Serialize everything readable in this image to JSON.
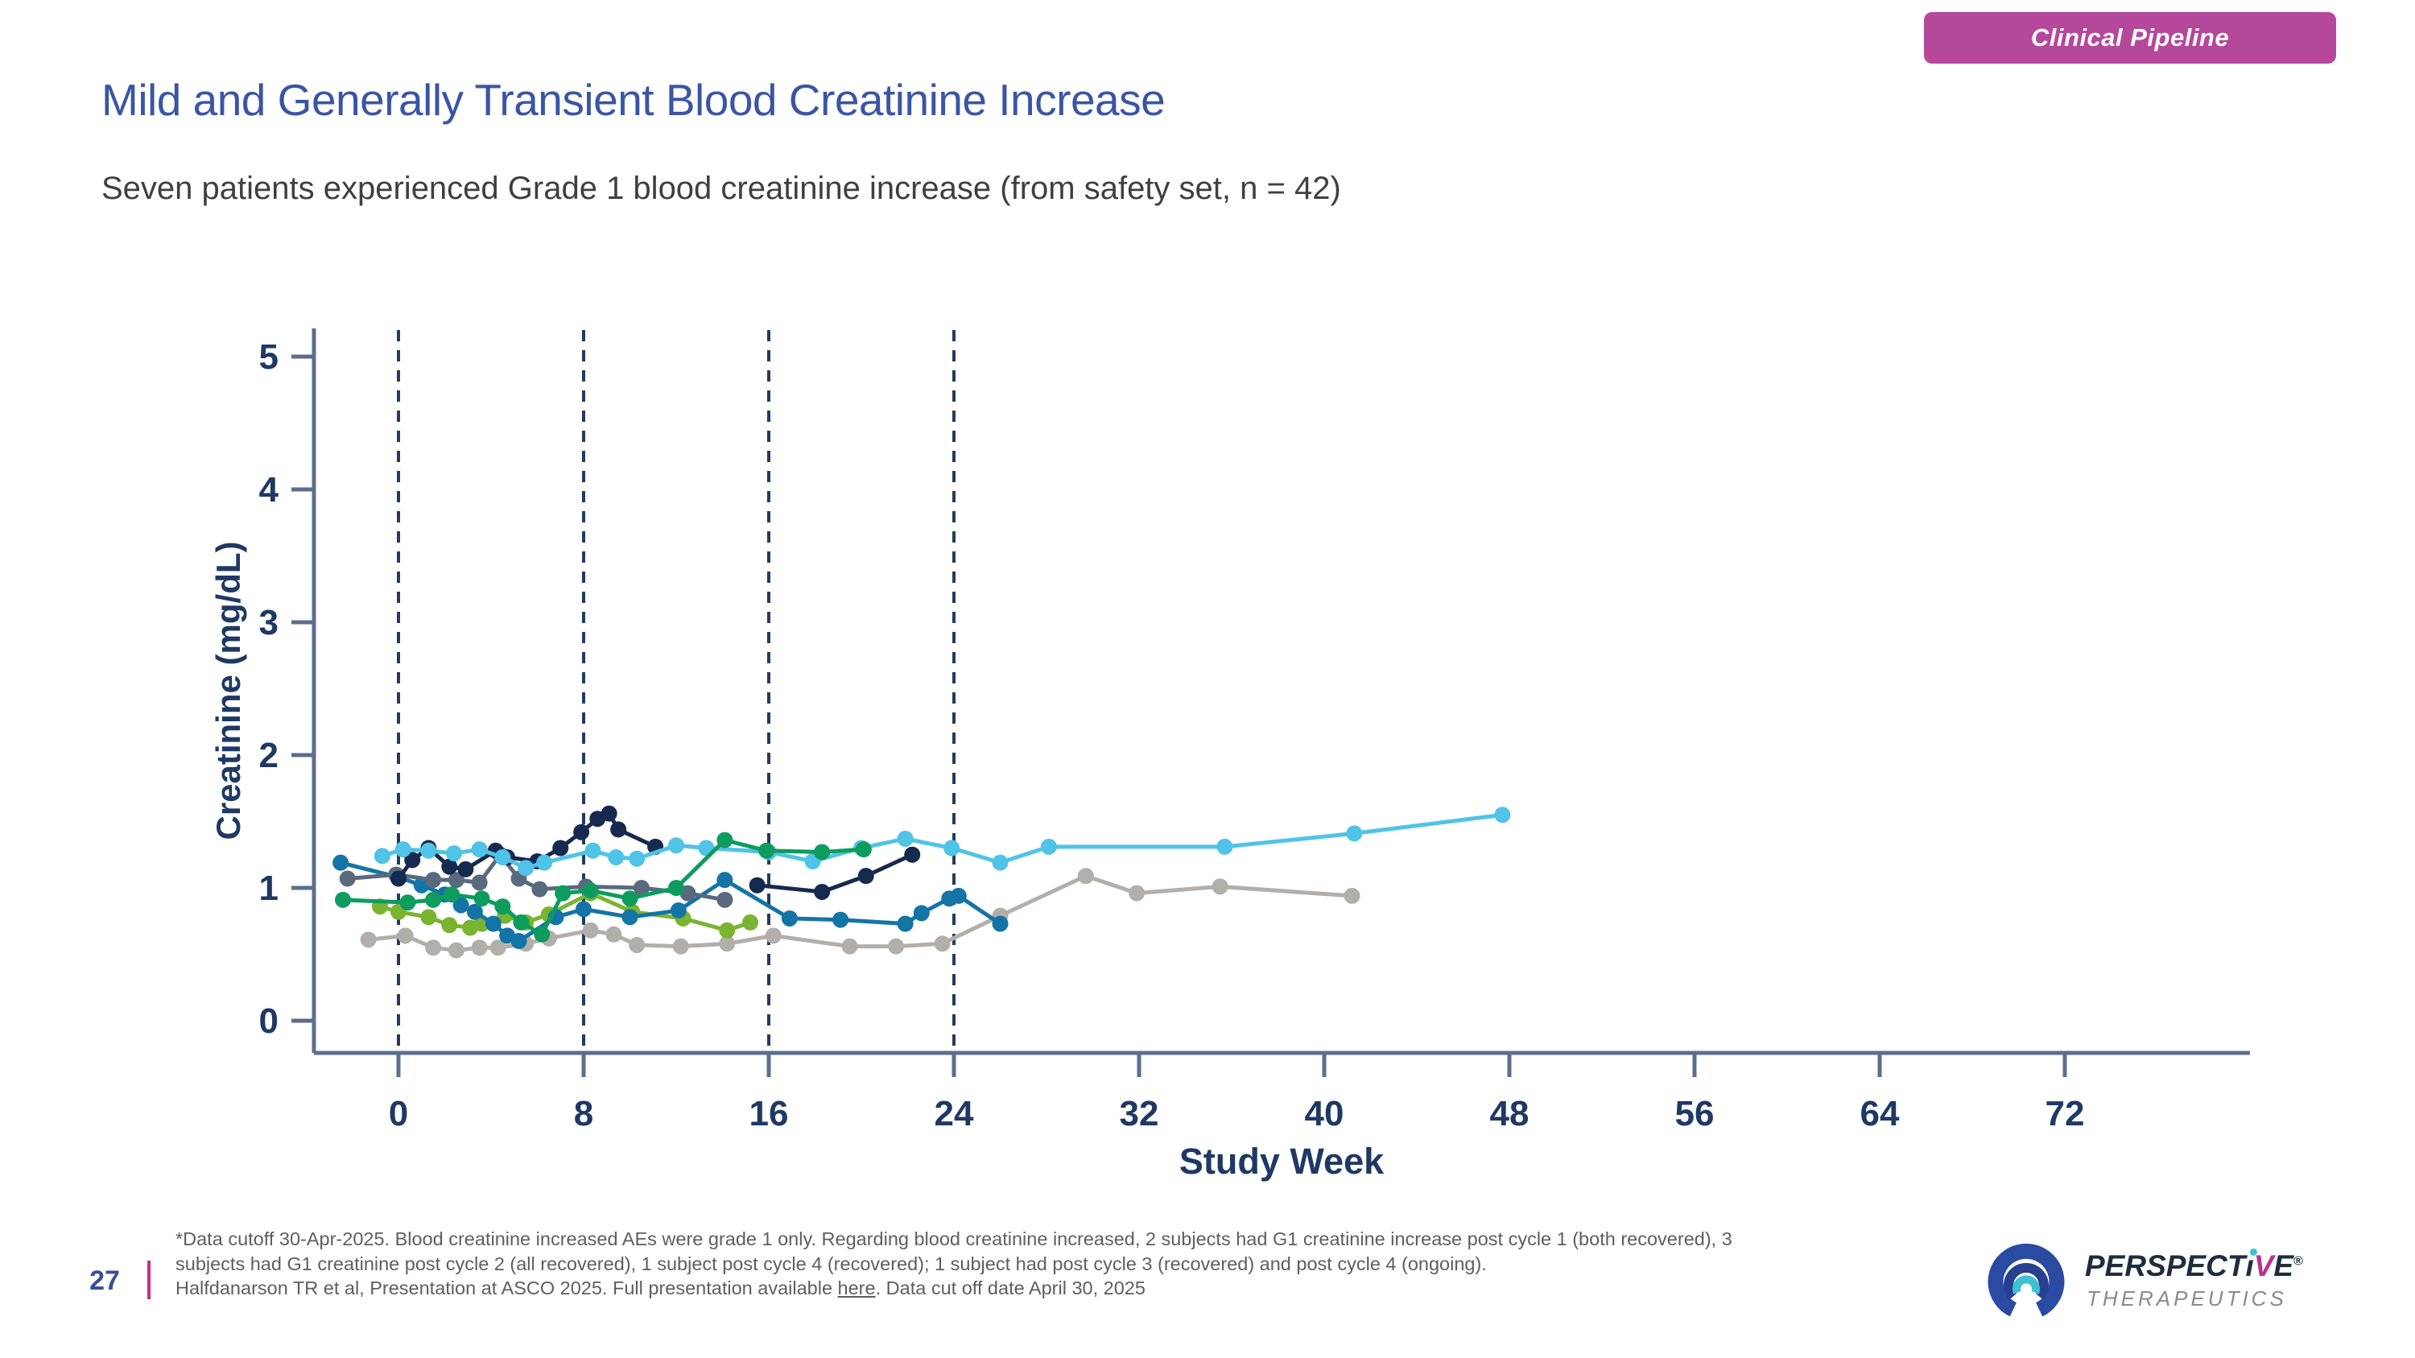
{
  "badge": {
    "label": "Clinical Pipeline",
    "bg": "#B5489B"
  },
  "header": {
    "title": "Mild and Generally Transient Blood Creatinine Increase",
    "subtitle": "Seven patients experienced Grade 1 blood creatinine increase (from safety set, n = 42)"
  },
  "chart_data": {
    "type": "line",
    "title": "",
    "xlabel": "Study  Week",
    "ylabel": "Creatinine (mg/dL)",
    "xlim": [
      -3.7,
      80
    ],
    "ylim": [
      -0.25,
      5.2
    ],
    "x_ticks": [
      0,
      8,
      16,
      24,
      32,
      40,
      48,
      56,
      64,
      72
    ],
    "y_ticks": [
      0,
      1,
      2,
      3,
      4,
      5
    ],
    "reference_lines_weeks": [
      0,
      8,
      16,
      24
    ],
    "grid": false,
    "legend": "none",
    "axis_color": "#5D6E8C",
    "tick_label_color": "#1F3864",
    "refline_color": "#233B5E",
    "marker_radius": 10,
    "line_width": 5,
    "series": [
      {
        "name": "patient-gray",
        "color": "#B2AFAA",
        "points": [
          [
            -1.3,
            0.61
          ],
          [
            0.3,
            0.64
          ],
          [
            1.5,
            0.55
          ],
          [
            2.5,
            0.53
          ],
          [
            3.5,
            0.55
          ],
          [
            4.3,
            0.55
          ],
          [
            5.5,
            0.58
          ],
          [
            6.5,
            0.62
          ],
          [
            8.3,
            0.68
          ],
          [
            9.3,
            0.65
          ],
          [
            10.3,
            0.57
          ],
          [
            12.2,
            0.56
          ],
          [
            14.2,
            0.58
          ],
          [
            16.2,
            0.64
          ],
          [
            19.5,
            0.56
          ],
          [
            21.5,
            0.56
          ],
          [
            23.5,
            0.58
          ],
          [
            26,
            0.79
          ],
          [
            29.7,
            1.09
          ],
          [
            31.9,
            0.96
          ],
          [
            35.5,
            1.01
          ],
          [
            41.2,
            0.94
          ]
        ]
      },
      {
        "name": "patient-lime",
        "color": "#7AB431",
        "points": [
          [
            -0.8,
            0.86
          ],
          [
            0,
            0.82
          ],
          [
            1.3,
            0.78
          ],
          [
            2.2,
            0.72
          ],
          [
            3.1,
            0.7
          ],
          [
            3.6,
            0.73
          ],
          [
            4.6,
            0.79
          ],
          [
            5.5,
            0.74
          ],
          [
            6.5,
            0.8
          ],
          [
            8.3,
            0.96
          ],
          [
            10.1,
            0.82
          ],
          [
            12.3,
            0.77
          ],
          [
            14.2,
            0.68
          ],
          [
            15.2,
            0.74
          ]
        ]
      },
      {
        "name": "patient-steelblue",
        "color": "#1474A6",
        "points": [
          [
            -2.5,
            1.19
          ],
          [
            0,
            1.08
          ],
          [
            1,
            1.02
          ],
          [
            2,
            0.95
          ],
          [
            2.7,
            0.87
          ],
          [
            3.3,
            0.82
          ],
          [
            4.1,
            0.73
          ],
          [
            4.7,
            0.64
          ],
          [
            5.2,
            0.6
          ],
          [
            6.8,
            0.78
          ],
          [
            8,
            0.84
          ],
          [
            10,
            0.78
          ],
          [
            12.1,
            0.83
          ],
          [
            14.1,
            1.06
          ],
          [
            16.9,
            0.77
          ],
          [
            19.1,
            0.76
          ],
          [
            21.9,
            0.73
          ],
          [
            22.6,
            0.81
          ],
          [
            23.8,
            0.92
          ],
          [
            24.2,
            0.94
          ],
          [
            26,
            0.73
          ]
        ]
      },
      {
        "name": "patient-slate",
        "color": "#5A6A7E",
        "points": [
          [
            -2.2,
            1.07
          ],
          [
            -0.1,
            1.1
          ],
          [
            1.5,
            1.06
          ],
          [
            2.5,
            1.06
          ],
          [
            3.5,
            1.04
          ],
          [
            4.4,
            1.25
          ],
          [
            5.2,
            1.07
          ],
          [
            6.1,
            0.99
          ],
          [
            8.1,
            1.01
          ],
          [
            10.5,
            1.0
          ],
          [
            12.5,
            0.96
          ],
          [
            14.1,
            0.91
          ]
        ]
      },
      {
        "name": "patient-navy",
        "color": "#16294F",
        "points": [
          [
            0,
            1.07
          ],
          [
            0.6,
            1.21
          ],
          [
            1.3,
            1.3
          ],
          [
            2.2,
            1.16
          ],
          [
            2.9,
            1.14
          ],
          [
            4.2,
            1.28
          ],
          [
            4.7,
            1.23
          ],
          [
            6,
            1.2
          ],
          [
            7,
            1.3
          ],
          [
            7.9,
            1.42
          ],
          [
            8.6,
            1.52
          ],
          [
            9.1,
            1.56
          ],
          [
            9.5,
            1.44
          ],
          [
            11.1,
            1.31
          ],
          null,
          [
            15.5,
            1.02
          ],
          [
            18.3,
            0.97
          ],
          [
            20.2,
            1.09
          ],
          [
            22.2,
            1.25
          ]
        ]
      },
      {
        "name": "patient-cyan",
        "color": "#4FC3E8",
        "points": [
          [
            -0.7,
            1.24
          ],
          [
            0.2,
            1.29
          ],
          [
            1.3,
            1.28
          ],
          [
            2.4,
            1.26
          ],
          [
            3.5,
            1.29
          ],
          [
            4.5,
            1.23
          ],
          [
            5.5,
            1.15
          ],
          [
            6.3,
            1.19
          ],
          [
            8.4,
            1.28
          ],
          [
            9.4,
            1.23
          ],
          [
            10.3,
            1.22
          ],
          [
            12,
            1.32
          ],
          [
            13.3,
            1.3
          ],
          [
            16,
            1.27
          ],
          [
            17.9,
            1.2
          ],
          [
            20,
            1.3
          ],
          [
            21.9,
            1.37
          ],
          [
            23.9,
            1.3
          ],
          [
            26,
            1.19
          ],
          [
            28.1,
            1.31
          ],
          [
            35.7,
            1.31
          ],
          [
            41.3,
            1.41
          ],
          [
            47.7,
            1.55
          ]
        ]
      },
      {
        "name": "patient-green",
        "color": "#0E9C5E",
        "points": [
          [
            -2.4,
            0.91
          ],
          [
            0.4,
            0.89
          ],
          [
            1.5,
            0.91
          ],
          [
            2.3,
            0.95
          ],
          [
            3.6,
            0.92
          ],
          [
            4.5,
            0.86
          ],
          [
            5.3,
            0.74
          ],
          [
            6.2,
            0.65
          ],
          [
            7.1,
            0.96
          ],
          [
            8.3,
            0.98
          ],
          [
            10,
            0.92
          ],
          [
            12,
            1.0
          ],
          [
            14.1,
            1.36
          ],
          [
            15.9,
            1.28
          ],
          [
            18.3,
            1.27
          ],
          [
            20.1,
            1.29
          ]
        ]
      }
    ]
  },
  "footer": {
    "page_number": "27",
    "note_line1": "*Data cutoff 30-Apr-2025. Blood creatinine increased AEs were grade 1 only.  Regarding blood creatinine increased, 2 subjects had G1 creatinine increase post cycle 1 (both recovered), 3",
    "note_line2": "subjects had G1 creatinine post cycle 2 (all recovered), 1 subject post cycle 4 (recovered); 1 subject had post cycle 3 (recovered) and post cycle 4 (ongoing).",
    "note_line3_pre": "Halfdanarson TR et al, Presentation at ASCO 2025. Full presentation available ",
    "note_line3_link": "here",
    "note_line3_post": ". Data cut off date April 30, 2025"
  },
  "logo": {
    "wordmark": "PERSPECTiVE",
    "wordmark_pre": "PERSPECT",
    "wordmark_i": "ı",
    "wordmark_v": "V",
    "wordmark_e": "E",
    "registered": "®",
    "subtext": "THERAPEUTICS",
    "blue": "#2B4AA2",
    "teal": "#3FC1D2",
    "magenta": "#B5338F"
  }
}
